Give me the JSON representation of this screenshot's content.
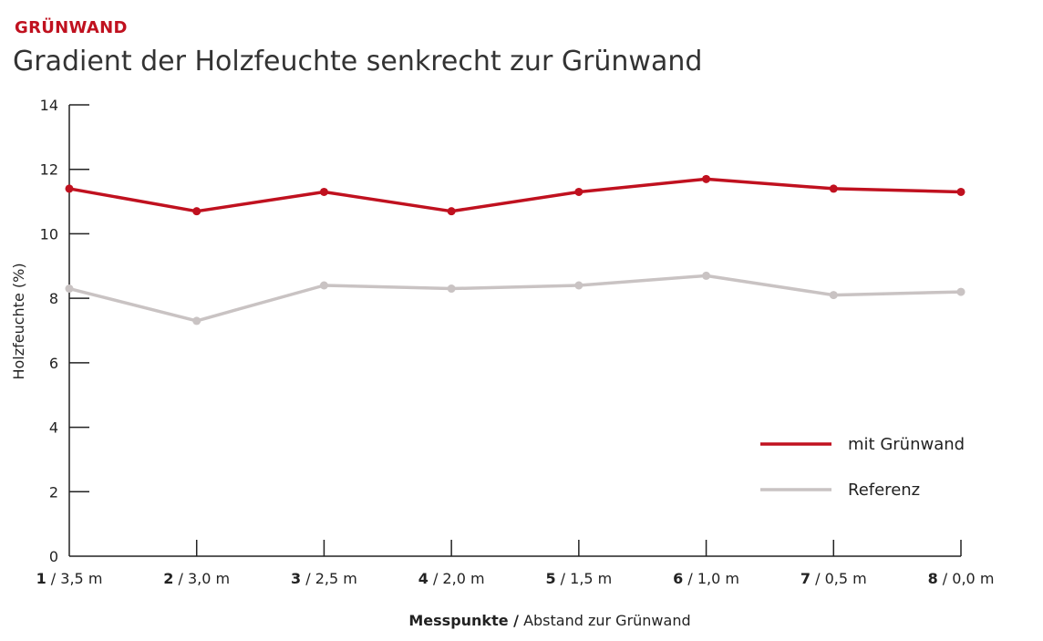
{
  "header": {
    "kicker": "GRÜNWAND",
    "title": "Gradient der Holzfeuchte senkrecht zur Grünwand"
  },
  "colors": {
    "series1": "#c0111f",
    "series2": "#c9c3c3",
    "kicker": "#c0111f"
  },
  "chart_data": {
    "type": "line",
    "title": "Gradient der Holzfeuchte senkrecht zur Grünwand",
    "ylabel": "Holzfeuchte (%)",
    "xlabel_bold": "Messpunkte /",
    "xlabel_rest": " Abstand zur Grünwand",
    "ylim": [
      0,
      14
    ],
    "yticks": [
      "0",
      "2",
      "4",
      "6",
      "8",
      "10",
      "12",
      "14"
    ],
    "categories": [
      {
        "num": "1",
        "rest": " / 3,5 m"
      },
      {
        "num": "2",
        "rest": " / 3,0 m"
      },
      {
        "num": "3",
        "rest": " / 2,5 m"
      },
      {
        "num": "4",
        "rest": " / 2,0 m"
      },
      {
        "num": "5",
        "rest": " / 1,5 m"
      },
      {
        "num": "6",
        "rest": " / 1,0 m"
      },
      {
        "num": "7",
        "rest": " / 0,5 m"
      },
      {
        "num": "8",
        "rest": " / 0,0 m"
      }
    ],
    "series": [
      {
        "name": "mit Grünwand",
        "color": "#c0111f",
        "values": [
          11.4,
          10.7,
          11.3,
          10.7,
          11.3,
          11.7,
          11.4,
          11.3
        ]
      },
      {
        "name": "Referenz",
        "color": "#c9c3c3",
        "values": [
          8.3,
          7.3,
          8.4,
          8.3,
          8.4,
          8.7,
          8.1,
          8.2
        ]
      }
    ],
    "legend_position": "bottom-right",
    "grid": false
  }
}
